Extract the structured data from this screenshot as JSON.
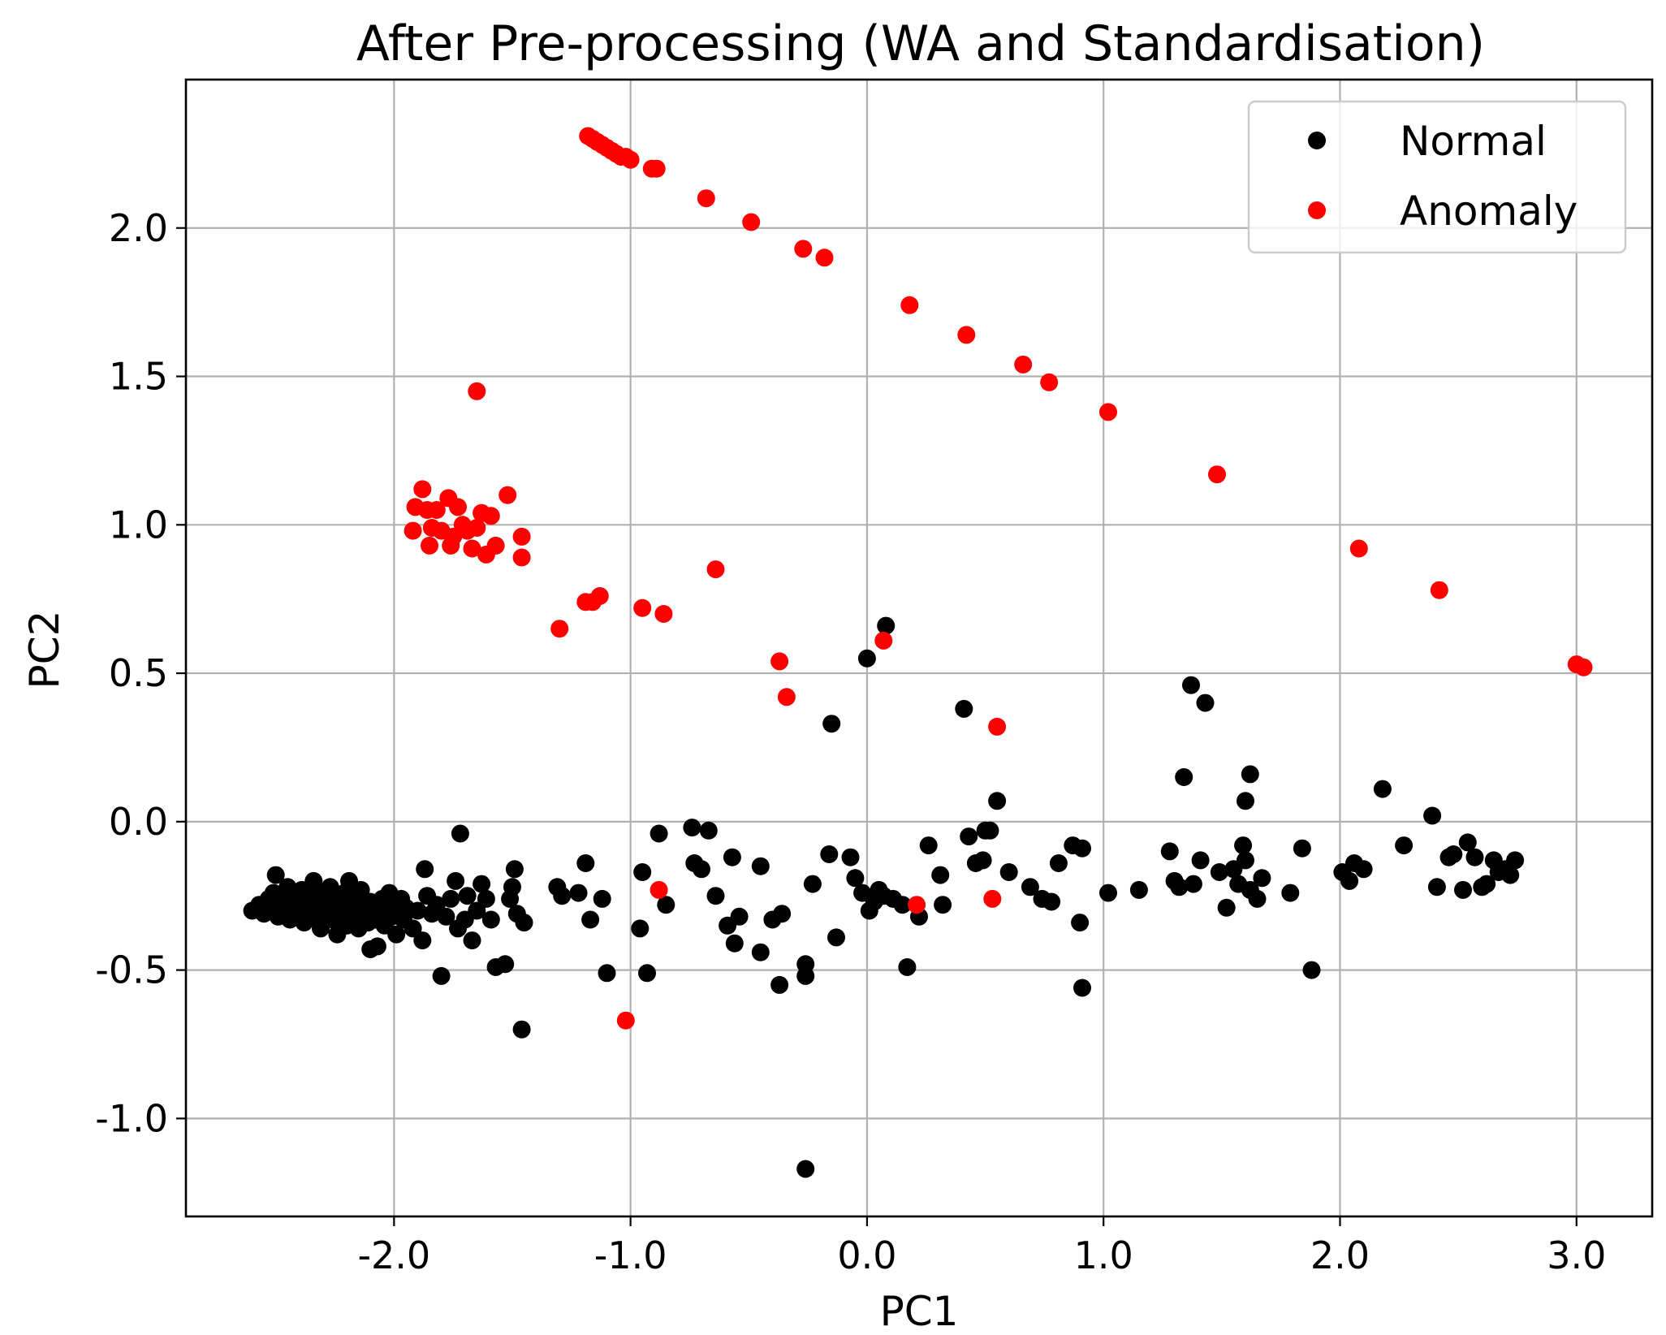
{
  "chart_data": {
    "type": "scatter",
    "title": "After Pre-processing (WA and Standardisation)",
    "xlabel": "PC1",
    "ylabel": "PC2",
    "xlim": [
      -2.88,
      3.32
    ],
    "ylim": [
      -1.33,
      2.5
    ],
    "xticks": [
      -2.0,
      -1.0,
      0.0,
      1.0,
      2.0,
      3.0
    ],
    "xtick_labels": [
      "-2.0",
      "-1.0",
      "0.0",
      "1.0",
      "2.0",
      "3.0"
    ],
    "yticks": [
      -1.0,
      -0.5,
      0.0,
      0.5,
      1.0,
      1.5,
      2.0
    ],
    "ytick_labels": [
      "-1.0",
      "-0.5",
      "0.0",
      "0.5",
      "1.0",
      "1.5",
      "2.0"
    ],
    "grid": true,
    "legend_position": "top-right",
    "series": [
      {
        "name": "Normal",
        "color": "#000000",
        "points": [
          [
            -2.6,
            -0.3
          ],
          [
            -2.57,
            -0.28
          ],
          [
            -2.55,
            -0.31
          ],
          [
            -2.53,
            -0.26
          ],
          [
            -2.52,
            -0.29
          ],
          [
            -2.51,
            -0.24
          ],
          [
            -2.5,
            -0.18
          ],
          [
            -2.49,
            -0.32
          ],
          [
            -2.47,
            -0.27
          ],
          [
            -2.46,
            -0.3
          ],
          [
            -2.45,
            -0.22
          ],
          [
            -2.44,
            -0.33
          ],
          [
            -2.43,
            -0.25
          ],
          [
            -2.42,
            -0.29
          ],
          [
            -2.41,
            -0.31
          ],
          [
            -2.4,
            -0.27
          ],
          [
            -2.39,
            -0.23
          ],
          [
            -2.38,
            -0.34
          ],
          [
            -2.37,
            -0.28
          ],
          [
            -2.36,
            -0.3
          ],
          [
            -2.35,
            -0.25
          ],
          [
            -2.34,
            -0.2
          ],
          [
            -2.33,
            -0.32
          ],
          [
            -2.32,
            -0.27
          ],
          [
            -2.31,
            -0.36
          ],
          [
            -2.3,
            -0.29
          ],
          [
            -2.29,
            -0.24
          ],
          [
            -2.28,
            -0.31
          ],
          [
            -2.27,
            -0.22
          ],
          [
            -2.26,
            -0.33
          ],
          [
            -2.25,
            -0.28
          ],
          [
            -2.24,
            -0.38
          ],
          [
            -2.23,
            -0.26
          ],
          [
            -2.22,
            -0.3
          ],
          [
            -2.21,
            -0.24
          ],
          [
            -2.2,
            -0.35
          ],
          [
            -2.19,
            -0.2
          ],
          [
            -2.18,
            -0.29
          ],
          [
            -2.17,
            -0.32
          ],
          [
            -2.16,
            -0.26
          ],
          [
            -2.15,
            -0.36
          ],
          [
            -2.14,
            -0.23
          ],
          [
            -2.13,
            -0.31
          ],
          [
            -2.12,
            -0.28
          ],
          [
            -2.11,
            -0.34
          ],
          [
            -2.1,
            -0.27
          ],
          [
            -2.09,
            -0.3
          ],
          [
            -2.08,
            -0.33
          ],
          [
            -2.07,
            -0.29
          ],
          [
            -2.06,
            -0.31
          ],
          [
            -2.05,
            -0.26
          ],
          [
            -2.04,
            -0.35
          ],
          [
            -2.03,
            -0.29
          ],
          [
            -2.02,
            -0.24
          ],
          [
            -2.01,
            -0.32
          ],
          [
            -2.0,
            -0.27
          ],
          [
            -1.99,
            -0.38
          ],
          [
            -1.98,
            -0.3
          ],
          [
            -1.97,
            -0.26
          ],
          [
            -1.96,
            -0.33
          ],
          [
            -1.95,
            -0.29
          ],
          [
            -2.1,
            -0.43
          ],
          [
            -2.07,
            -0.42
          ],
          [
            -1.92,
            -0.36
          ],
          [
            -1.9,
            -0.3
          ],
          [
            -1.88,
            -0.4
          ],
          [
            -1.87,
            -0.16
          ],
          [
            -1.86,
            -0.25
          ],
          [
            -1.84,
            -0.31
          ],
          [
            -1.82,
            -0.28
          ],
          [
            -1.8,
            -0.52
          ],
          [
            -1.78,
            -0.32
          ],
          [
            -1.76,
            -0.26
          ],
          [
            -1.74,
            -0.2
          ],
          [
            -1.73,
            -0.36
          ],
          [
            -1.72,
            -0.04
          ],
          [
            -1.7,
            -0.33
          ],
          [
            -1.69,
            -0.25
          ],
          [
            -1.67,
            -0.4
          ],
          [
            -1.65,
            -0.3
          ],
          [
            -1.63,
            -0.21
          ],
          [
            -1.61,
            -0.26
          ],
          [
            -1.59,
            -0.33
          ],
          [
            -1.57,
            -0.49
          ],
          [
            -1.53,
            -0.48
          ],
          [
            -1.51,
            -0.26
          ],
          [
            -1.5,
            -0.22
          ],
          [
            -1.49,
            -0.16
          ],
          [
            -1.48,
            -0.31
          ],
          [
            -1.46,
            -0.7
          ],
          [
            -1.45,
            -0.34
          ],
          [
            -1.31,
            -0.22
          ],
          [
            -1.29,
            -0.25
          ],
          [
            -1.22,
            -0.24
          ],
          [
            -1.19,
            -0.14
          ],
          [
            -1.17,
            -0.33
          ],
          [
            -1.12,
            -0.26
          ],
          [
            -1.1,
            -0.51
          ],
          [
            -0.96,
            -0.36
          ],
          [
            -0.95,
            -0.17
          ],
          [
            -0.93,
            -0.51
          ],
          [
            -0.88,
            -0.04
          ],
          [
            -0.85,
            -0.28
          ],
          [
            -0.74,
            -0.02
          ],
          [
            -0.73,
            -0.14
          ],
          [
            -0.7,
            -0.16
          ],
          [
            -0.67,
            -0.03
          ],
          [
            -0.64,
            -0.25
          ],
          [
            -0.59,
            -0.35
          ],
          [
            -0.57,
            -0.12
          ],
          [
            -0.56,
            -0.41
          ],
          [
            -0.54,
            -0.32
          ],
          [
            -0.45,
            -0.15
          ],
          [
            -0.45,
            -0.44
          ],
          [
            -0.4,
            -0.33
          ],
          [
            -0.36,
            -0.31
          ],
          [
            -0.37,
            -0.55
          ],
          [
            -0.26,
            -0.48
          ],
          [
            -0.26,
            -0.52
          ],
          [
            -0.26,
            -1.17
          ],
          [
            -0.23,
            -0.21
          ],
          [
            -0.16,
            -0.11
          ],
          [
            -0.15,
            0.33
          ],
          [
            -0.13,
            -0.39
          ],
          [
            -0.07,
            -0.12
          ],
          [
            -0.05,
            -0.19
          ],
          [
            -0.02,
            -0.24
          ],
          [
            0.0,
            0.55
          ],
          [
            0.01,
            -0.3
          ],
          [
            0.03,
            -0.27
          ],
          [
            0.05,
            -0.23
          ],
          [
            0.07,
            -0.25
          ],
          [
            0.08,
            0.66
          ],
          [
            0.11,
            -0.26
          ],
          [
            0.15,
            -0.28
          ],
          [
            0.17,
            -0.49
          ],
          [
            0.22,
            -0.32
          ],
          [
            0.26,
            -0.08
          ],
          [
            0.32,
            -0.28
          ],
          [
            0.31,
            -0.18
          ],
          [
            0.41,
            0.38
          ],
          [
            0.43,
            -0.05
          ],
          [
            0.46,
            -0.14
          ],
          [
            0.49,
            -0.13
          ],
          [
            0.5,
            -0.03
          ],
          [
            0.52,
            -0.03
          ],
          [
            0.55,
            0.07
          ],
          [
            0.6,
            -0.17
          ],
          [
            0.69,
            -0.22
          ],
          [
            0.74,
            -0.26
          ],
          [
            0.78,
            -0.27
          ],
          [
            0.81,
            -0.14
          ],
          [
            0.87,
            -0.08
          ],
          [
            0.9,
            -0.34
          ],
          [
            0.91,
            -0.09
          ],
          [
            0.91,
            -0.56
          ],
          [
            1.02,
            -0.24
          ],
          [
            1.15,
            -0.23
          ],
          [
            1.28,
            -0.1
          ],
          [
            1.3,
            -0.2
          ],
          [
            1.32,
            -0.22
          ],
          [
            1.34,
            0.15
          ],
          [
            1.37,
            0.46
          ],
          [
            1.38,
            -0.21
          ],
          [
            1.41,
            -0.13
          ],
          [
            1.43,
            0.4
          ],
          [
            1.49,
            -0.17
          ],
          [
            1.52,
            -0.29
          ],
          [
            1.55,
            -0.16
          ],
          [
            1.57,
            -0.21
          ],
          [
            1.59,
            -0.08
          ],
          [
            1.6,
            -0.13
          ],
          [
            1.6,
            0.07
          ],
          [
            1.62,
            -0.23
          ],
          [
            1.62,
            0.16
          ],
          [
            1.65,
            -0.26
          ],
          [
            1.67,
            -0.19
          ],
          [
            1.79,
            -0.24
          ],
          [
            1.84,
            -0.09
          ],
          [
            1.88,
            -0.5
          ],
          [
            2.01,
            -0.17
          ],
          [
            2.04,
            -0.2
          ],
          [
            2.06,
            -0.14
          ],
          [
            2.1,
            -0.16
          ],
          [
            2.18,
            0.11
          ],
          [
            2.27,
            -0.08
          ],
          [
            2.39,
            0.02
          ],
          [
            2.41,
            -0.22
          ],
          [
            2.46,
            -0.12
          ],
          [
            2.48,
            -0.11
          ],
          [
            2.52,
            -0.23
          ],
          [
            2.54,
            -0.07
          ],
          [
            2.57,
            -0.12
          ],
          [
            2.6,
            -0.22
          ],
          [
            2.62,
            -0.21
          ],
          [
            2.65,
            -0.13
          ],
          [
            2.67,
            -0.17
          ],
          [
            2.7,
            -0.16
          ],
          [
            2.72,
            -0.18
          ],
          [
            2.74,
            -0.13
          ]
        ]
      },
      {
        "name": "Anomaly",
        "color": "#ff0000",
        "points": [
          [
            -1.18,
            2.31
          ],
          [
            -1.16,
            2.3
          ],
          [
            -1.14,
            2.29
          ],
          [
            -1.12,
            2.28
          ],
          [
            -1.1,
            2.27
          ],
          [
            -1.08,
            2.26
          ],
          [
            -1.06,
            2.25
          ],
          [
            -1.04,
            2.24
          ],
          [
            -1.02,
            2.24
          ],
          [
            -1.0,
            2.23
          ],
          [
            -0.91,
            2.2
          ],
          [
            -0.89,
            2.2
          ],
          [
            -0.68,
            2.1
          ],
          [
            -0.49,
            2.02
          ],
          [
            -0.27,
            1.93
          ],
          [
            -0.18,
            1.9
          ],
          [
            0.18,
            1.74
          ],
          [
            0.42,
            1.64
          ],
          [
            0.66,
            1.54
          ],
          [
            0.77,
            1.48
          ],
          [
            1.02,
            1.38
          ],
          [
            1.48,
            1.17
          ],
          [
            2.08,
            0.92
          ],
          [
            2.42,
            0.78
          ],
          [
            3.0,
            0.53
          ],
          [
            3.03,
            0.52
          ],
          [
            -1.65,
            1.45
          ],
          [
            -1.91,
            1.06
          ],
          [
            -1.88,
            1.12
          ],
          [
            -1.86,
            1.05
          ],
          [
            -1.84,
            0.99
          ],
          [
            -1.82,
            1.05
          ],
          [
            -1.8,
            0.98
          ],
          [
            -1.77,
            1.09
          ],
          [
            -1.75,
            0.96
          ],
          [
            -1.73,
            1.06
          ],
          [
            -1.71,
            1.0
          ],
          [
            -1.69,
            0.98
          ],
          [
            -1.67,
            0.92
          ],
          [
            -1.65,
            0.99
          ],
          [
            -1.63,
            1.04
          ],
          [
            -1.61,
            0.9
          ],
          [
            -1.59,
            1.03
          ],
          [
            -1.57,
            0.93
          ],
          [
            -1.52,
            1.1
          ],
          [
            -1.46,
            0.96
          ],
          [
            -1.46,
            0.89
          ],
          [
            -1.92,
            0.98
          ],
          [
            -1.85,
            0.93
          ],
          [
            -1.76,
            0.93
          ],
          [
            -1.3,
            0.65
          ],
          [
            -1.19,
            0.74
          ],
          [
            -1.16,
            0.74
          ],
          [
            -1.13,
            0.76
          ],
          [
            -0.95,
            0.72
          ],
          [
            -0.86,
            0.7
          ],
          [
            -0.64,
            0.85
          ],
          [
            -0.37,
            0.54
          ],
          [
            -0.34,
            0.42
          ],
          [
            0.07,
            0.61
          ],
          [
            0.55,
            0.32
          ],
          [
            -0.88,
            -0.23
          ],
          [
            0.21,
            -0.28
          ],
          [
            0.53,
            -0.26
          ],
          [
            -1.02,
            -0.67
          ]
        ]
      }
    ]
  }
}
